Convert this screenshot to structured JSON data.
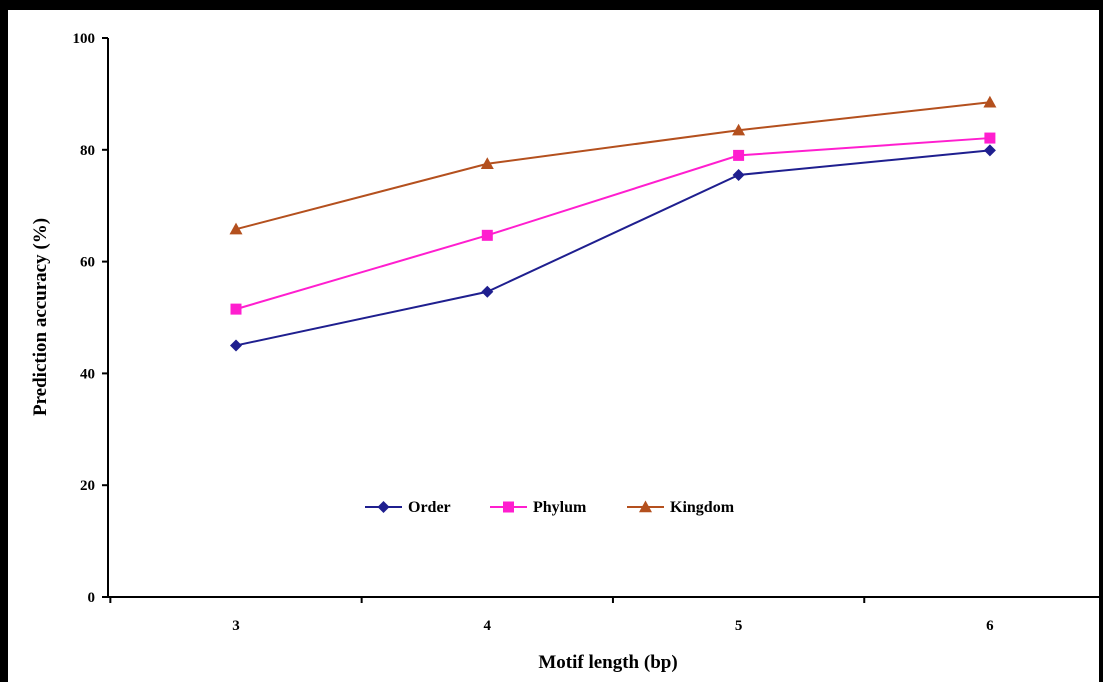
{
  "chart_data": {
    "type": "line",
    "title": "",
    "xlabel": "Motif length (bp)",
    "ylabel": "Prediction accuracy (%)",
    "x": [
      3,
      4,
      5,
      6
    ],
    "x_tick_labels": [
      "3",
      "4",
      "5",
      "6"
    ],
    "ylim": [
      0,
      100
    ],
    "y_ticks": [
      0,
      20,
      40,
      60,
      80,
      100
    ],
    "y_tick_labels": [
      "0",
      "20",
      "40",
      "60",
      "80",
      "100"
    ],
    "grid": false,
    "legend_position": "lower-center",
    "series": [
      {
        "name": "Order",
        "values": [
          45.0,
          54.6,
          75.5,
          79.9
        ],
        "color": "#1f1f8f",
        "marker": "diamond"
      },
      {
        "name": "Phylum",
        "values": [
          51.5,
          64.7,
          79.0,
          82.1
        ],
        "color": "#ff1ecf",
        "marker": "square"
      },
      {
        "name": "Kingdom",
        "values": [
          65.8,
          77.5,
          83.5,
          88.5
        ],
        "color": "#b4501e",
        "marker": "triangle"
      }
    ]
  }
}
